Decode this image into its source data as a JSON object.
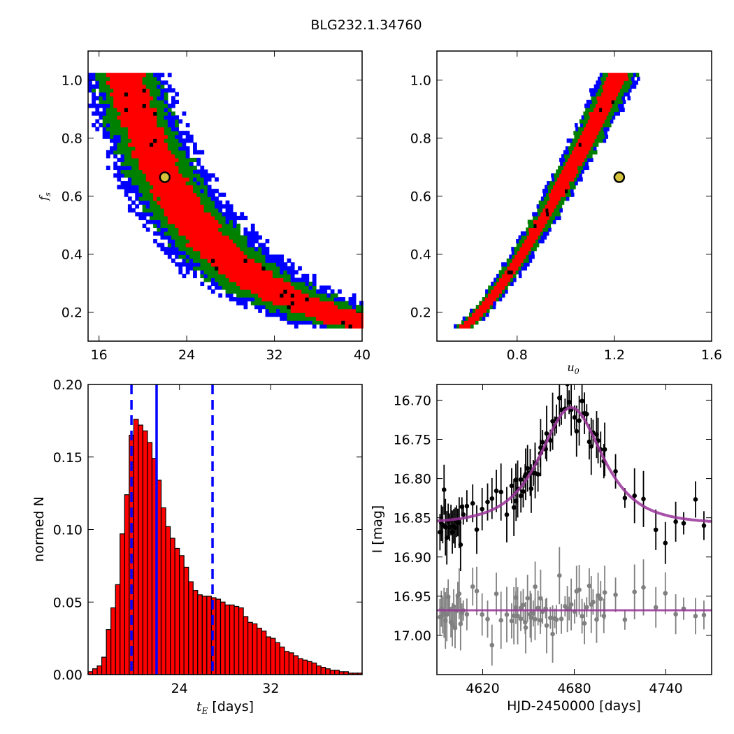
{
  "title": "BLG232.1.34760",
  "chart_data": [
    {
      "type": "heatmap",
      "panel": "top-left",
      "xlabel": "",
      "ylabel": "f_s",
      "xlim": [
        15,
        40
      ],
      "ylim": [
        0.1,
        1.1
      ],
      "xticks": [
        16,
        24,
        32,
        40
      ],
      "yticks": [
        0.2,
        0.4,
        0.6,
        0.8,
        1.0
      ],
      "best_fit": {
        "x": 22.0,
        "y": 0.665
      },
      "band_relation": "f_s = 0.665 * (22 / t_E)^2.35",
      "contour_colors": {
        "outer": "#0000ff",
        "mid": "#008000",
        "inner": "#ff0000",
        "peak": "#000000"
      }
    },
    {
      "type": "heatmap",
      "panel": "top-right",
      "xlabel": "u_0",
      "ylabel": "",
      "xlim": [
        0.47,
        1.6
      ],
      "ylim": [
        0.1,
        1.1
      ],
      "xticks": [
        0.8,
        1.2,
        1.6
      ],
      "yticks": [
        0.2,
        0.4,
        0.6,
        0.8,
        1.0
      ],
      "best_fit": {
        "x": 1.22,
        "y": 0.665
      },
      "contour_colors": {
        "outer": "#0000ff",
        "mid": "#008000",
        "inner": "#ff0000",
        "peak": "#000000"
      }
    },
    {
      "type": "bar",
      "panel": "bottom-left",
      "xlabel": "t_E  [days]",
      "ylabel": "normed N",
      "xlim": [
        16,
        40
      ],
      "ylim": [
        0.0,
        0.2
      ],
      "xticks": [
        24,
        32
      ],
      "yticks": [
        0.0,
        0.05,
        0.1,
        0.15,
        0.2
      ],
      "bin_start": 16.0,
      "bin_width": 0.4,
      "values": [
        0.002,
        0.004,
        0.006,
        0.012,
        0.031,
        0.046,
        0.062,
        0.097,
        0.124,
        0.165,
        0.176,
        0.172,
        0.168,
        0.16,
        0.149,
        0.134,
        0.115,
        0.102,
        0.094,
        0.087,
        0.082,
        0.074,
        0.064,
        0.058,
        0.055,
        0.054,
        0.054,
        0.053,
        0.052,
        0.05,
        0.048,
        0.048,
        0.047,
        0.046,
        0.04,
        0.036,
        0.035,
        0.032,
        0.03,
        0.026,
        0.025,
        0.022,
        0.019,
        0.016,
        0.015,
        0.013,
        0.011,
        0.01,
        0.009,
        0.008,
        0.006,
        0.005,
        0.004,
        0.003,
        0.003,
        0.002,
        0.002,
        0.001,
        0.001,
        0.001
      ],
      "bar_color": "#ff0000",
      "median": 22.0,
      "lower": 19.8,
      "upper": 26.9
    },
    {
      "type": "scatter",
      "panel": "bottom-right",
      "xlabel": "HJD-2450000 [days]",
      "ylabel": "I [mag]",
      "xlim": [
        4590,
        4770
      ],
      "ylim": [
        17.05,
        16.68
      ],
      "y_inverted": true,
      "xticks": [
        4620,
        4680,
        4740
      ],
      "yticks": [
        16.7,
        16.75,
        16.8,
        16.85,
        16.9,
        16.95,
        17.0
      ],
      "model": {
        "t0": 4678,
        "tE": 22.0,
        "u0": 1.22,
        "fs": 0.665,
        "I_base": 16.858,
        "color": "#993399"
      },
      "residual_offset_mag": 0.11,
      "series": [
        {
          "name": "",
          "color": "#000000",
          "kind": "photometry"
        },
        {
          "name": "",
          "color": "#808080",
          "kind": "residuals"
        }
      ]
    }
  ]
}
